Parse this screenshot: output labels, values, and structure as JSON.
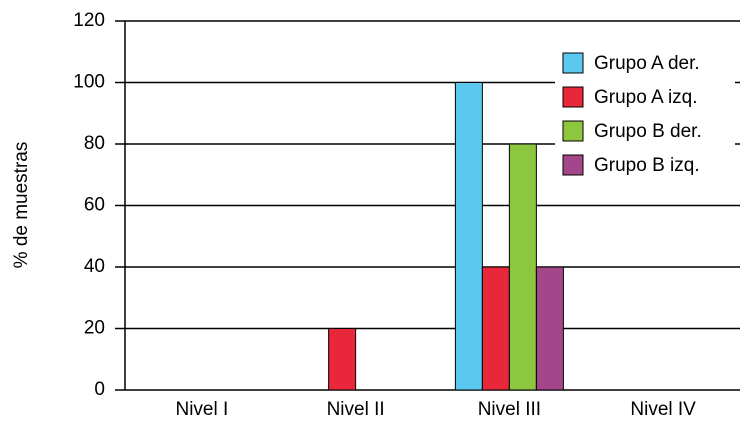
{
  "chart_data": {
    "type": "bar",
    "ylabel": "% de muestras",
    "categories": [
      "Nivel I",
      "Nivel II",
      "Nivel III",
      "Nivel IV"
    ],
    "series": [
      {
        "name": "Grupo A der.",
        "color": "#5bc8f0",
        "values": [
          0,
          0,
          100,
          0
        ]
      },
      {
        "name": "Grupo A izq.",
        "color": "#e8273a",
        "values": [
          0,
          20,
          40,
          0
        ]
      },
      {
        "name": "Grupo B der.",
        "color": "#8dc63f",
        "values": [
          0,
          0,
          80,
          0
        ]
      },
      {
        "name": "Grupo B izq.",
        "color": "#a4468a",
        "values": [
          0,
          0,
          40,
          0
        ]
      }
    ],
    "ylim": [
      0,
      120
    ],
    "yticks": [
      0,
      20,
      40,
      60,
      80,
      100,
      120
    ],
    "grid": true,
    "legend": "upper right"
  }
}
